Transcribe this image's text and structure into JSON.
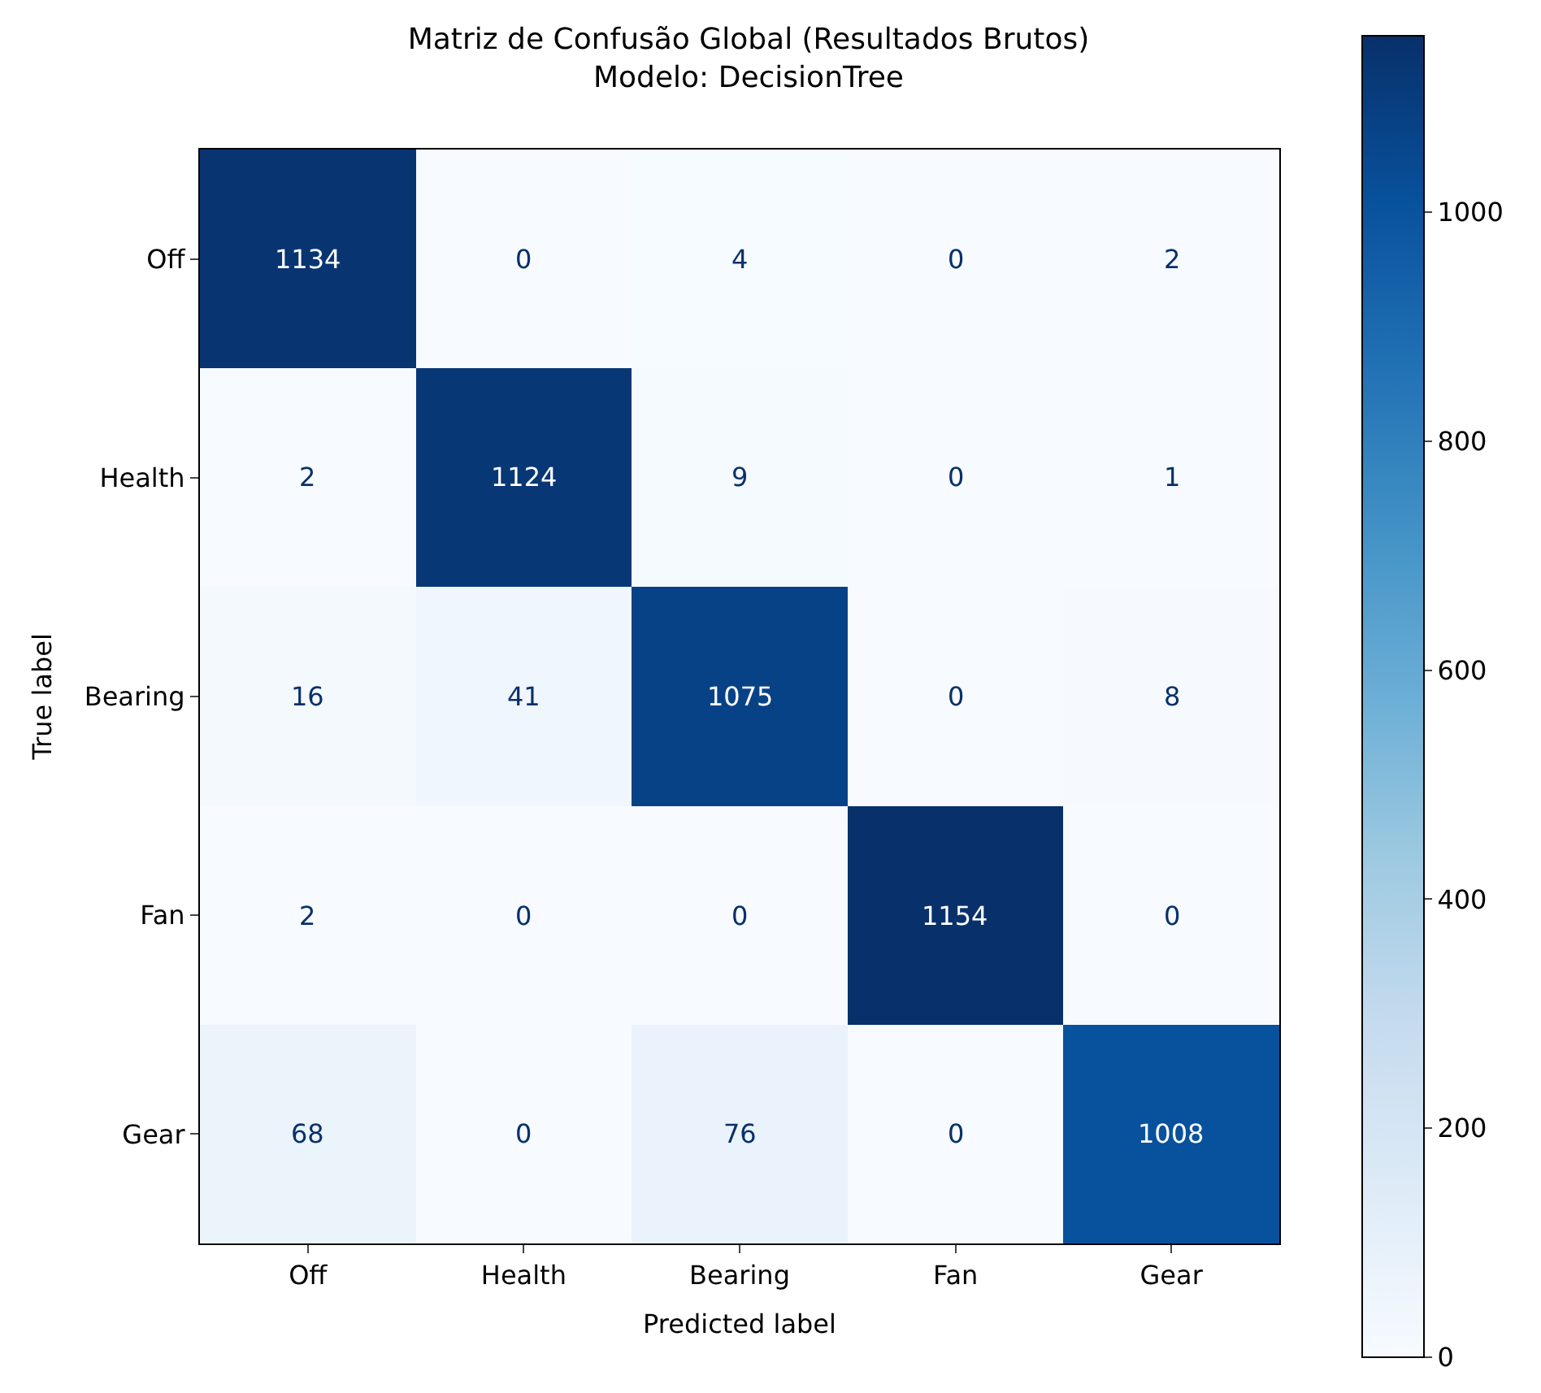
{
  "chart_data": {
    "type": "heatmap",
    "title": "Matriz de Confusão Global (Resultados Brutos)",
    "subtitle": "Modelo: DecisionTree",
    "xlabel": "Predicted label",
    "ylabel": "True label",
    "categories": [
      "Off",
      "Health",
      "Bearing",
      "Fan",
      "Gear"
    ],
    "y_categories": [
      "Off",
      "Health",
      "Bearing",
      "Fan",
      "Gear"
    ],
    "cells": [
      [
        1134,
        0,
        4,
        0,
        2
      ],
      [
        2,
        1124,
        9,
        0,
        1
      ],
      [
        16,
        41,
        1075,
        0,
        8
      ],
      [
        2,
        0,
        0,
        1154,
        0
      ],
      [
        68,
        0,
        76,
        0,
        1008
      ]
    ],
    "clim": [
      0,
      1154
    ],
    "cticks": [
      0,
      200,
      400,
      600,
      800,
      1000
    ],
    "data_labels": true
  }
}
